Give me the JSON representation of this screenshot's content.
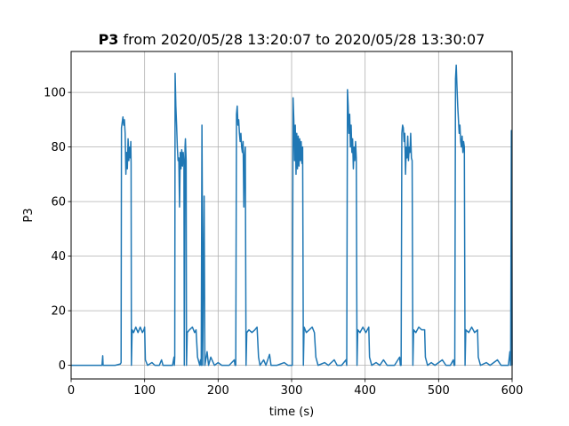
{
  "chart_data": {
    "type": "line",
    "title": {
      "bold": "P3",
      "rest": " from 2020/05/28 13:20:07 to 2020/05/28 13:30:07"
    },
    "xlabel": "time (s)",
    "ylabel": "P3",
    "xlim": [
      0,
      600
    ],
    "ylim": [
      -5,
      115
    ],
    "xticks": [
      0,
      100,
      200,
      300,
      400,
      500,
      600
    ],
    "yticks": [
      0,
      20,
      40,
      60,
      80,
      100
    ],
    "grid": true,
    "series": [
      {
        "color": "#1f77b4",
        "points": [
          [
            0,
            0
          ],
          [
            42,
            0
          ],
          [
            43,
            3.5
          ],
          [
            43.5,
            0
          ],
          [
            60,
            0
          ],
          [
            67,
            0.5
          ],
          [
            68,
            1
          ],
          [
            68.5,
            87
          ],
          [
            69.5,
            89
          ],
          [
            70.5,
            91
          ],
          [
            71.5,
            88
          ],
          [
            72.5,
            90
          ],
          [
            73.5,
            85
          ],
          [
            74.5,
            70
          ],
          [
            75.5,
            78
          ],
          [
            76.5,
            72
          ],
          [
            77.5,
            83
          ],
          [
            78.5,
            75
          ],
          [
            79.5,
            80
          ],
          [
            80.5,
            76
          ],
          [
            81.2,
            82
          ],
          [
            81.6,
            74
          ],
          [
            82,
            0
          ],
          [
            83,
            13
          ],
          [
            85,
            12
          ],
          [
            88,
            14
          ],
          [
            91,
            12
          ],
          [
            94,
            14
          ],
          [
            97,
            12
          ],
          [
            99,
            13
          ],
          [
            100,
            14
          ],
          [
            101,
            2
          ],
          [
            104,
            0
          ],
          [
            110,
            1
          ],
          [
            114,
            0
          ],
          [
            120,
            0
          ],
          [
            123,
            2
          ],
          [
            125,
            0
          ],
          [
            138,
            0
          ],
          [
            140,
            3
          ],
          [
            140.5,
            0
          ],
          [
            141,
            3
          ],
          [
            141.5,
            107
          ],
          [
            142.5,
            95
          ],
          [
            143.5,
            88
          ],
          [
            144.5,
            80
          ],
          [
            145.5,
            75
          ],
          [
            146.5,
            76
          ],
          [
            147.5,
            58
          ],
          [
            148.5,
            78
          ],
          [
            149.5,
            72
          ],
          [
            150.5,
            79
          ],
          [
            151.5,
            73
          ],
          [
            152.5,
            78
          ],
          [
            153.5,
            74
          ],
          [
            154,
            0
          ],
          [
            155,
            80
          ],
          [
            155.5,
            83
          ],
          [
            156.5,
            75
          ],
          [
            157,
            0
          ],
          [
            158,
            12
          ],
          [
            161,
            13
          ],
          [
            165,
            14
          ],
          [
            168,
            12
          ],
          [
            170,
            13
          ],
          [
            172,
            3
          ],
          [
            175,
            0
          ],
          [
            176,
            2
          ],
          [
            177,
            0
          ],
          [
            178,
            88
          ],
          [
            178.5,
            62
          ],
          [
            179,
            0
          ],
          [
            181,
            62
          ],
          [
            182,
            0
          ],
          [
            185,
            5
          ],
          [
            187,
            0
          ],
          [
            190,
            3
          ],
          [
            195,
            0
          ],
          [
            200,
            1
          ],
          [
            205,
            0
          ],
          [
            215,
            0
          ],
          [
            222,
            2
          ],
          [
            223,
            0
          ],
          [
            224,
            0
          ],
          [
            225,
            92
          ],
          [
            226,
            95
          ],
          [
            227,
            88
          ],
          [
            228,
            90
          ],
          [
            229,
            85
          ],
          [
            230,
            82
          ],
          [
            231,
            85
          ],
          [
            232,
            80
          ],
          [
            233,
            78
          ],
          [
            234,
            82
          ],
          [
            235,
            58
          ],
          [
            236,
            77
          ],
          [
            237,
            80
          ],
          [
            238,
            0
          ],
          [
            239,
            12
          ],
          [
            242,
            13
          ],
          [
            246,
            12
          ],
          [
            250,
            13
          ],
          [
            253,
            14
          ],
          [
            255,
            3
          ],
          [
            257,
            0
          ],
          [
            262,
            2
          ],
          [
            265,
            0
          ],
          [
            270,
            4
          ],
          [
            272,
            0
          ],
          [
            280,
            0
          ],
          [
            290,
            1
          ],
          [
            295,
            0
          ],
          [
            300,
            0
          ],
          [
            301,
            0
          ],
          [
            302,
            98
          ],
          [
            303,
            90
          ],
          [
            304,
            75
          ],
          [
            305,
            88
          ],
          [
            306,
            70
          ],
          [
            307,
            85
          ],
          [
            308,
            72
          ],
          [
            309,
            84
          ],
          [
            310,
            73
          ],
          [
            311,
            83
          ],
          [
            312,
            75
          ],
          [
            313,
            82
          ],
          [
            314,
            74
          ],
          [
            315,
            80
          ],
          [
            316,
            0
          ],
          [
            317,
            14
          ],
          [
            320,
            12
          ],
          [
            324,
            13
          ],
          [
            328,
            14
          ],
          [
            331,
            12
          ],
          [
            333,
            3
          ],
          [
            336,
            0
          ],
          [
            345,
            1
          ],
          [
            350,
            0
          ],
          [
            358,
            2
          ],
          [
            362,
            0
          ],
          [
            368,
            0
          ],
          [
            374,
            2
          ],
          [
            375,
            0
          ],
          [
            376,
            101
          ],
          [
            377,
            95
          ],
          [
            378,
            85
          ],
          [
            379,
            92
          ],
          [
            380,
            80
          ],
          [
            381,
            88
          ],
          [
            382,
            78
          ],
          [
            383,
            83
          ],
          [
            384,
            72
          ],
          [
            385,
            80
          ],
          [
            386,
            75
          ],
          [
            387,
            82
          ],
          [
            388,
            76
          ],
          [
            389,
            0
          ],
          [
            390,
            13
          ],
          [
            393,
            12
          ],
          [
            397,
            14
          ],
          [
            401,
            12
          ],
          [
            405,
            14
          ],
          [
            406,
            3
          ],
          [
            409,
            0
          ],
          [
            415,
            1
          ],
          [
            420,
            0
          ],
          [
            425,
            2
          ],
          [
            430,
            0
          ],
          [
            440,
            0
          ],
          [
            447,
            3
          ],
          [
            448,
            0
          ],
          [
            449,
            0
          ],
          [
            450,
            85
          ],
          [
            451,
            88
          ],
          [
            452,
            87
          ],
          [
            453,
            82
          ],
          [
            454,
            85
          ],
          [
            455,
            70
          ],
          [
            456,
            80
          ],
          [
            457,
            76
          ],
          [
            458,
            84
          ],
          [
            459,
            75
          ],
          [
            460,
            80
          ],
          [
            461,
            78
          ],
          [
            462,
            85
          ],
          [
            463,
            76
          ],
          [
            464,
            75
          ],
          [
            465,
            0
          ],
          [
            466,
            13
          ],
          [
            469,
            12
          ],
          [
            473,
            14
          ],
          [
            477,
            13
          ],
          [
            481,
            13
          ],
          [
            482,
            3
          ],
          [
            485,
            0
          ],
          [
            490,
            1
          ],
          [
            495,
            0
          ],
          [
            505,
            2
          ],
          [
            510,
            0
          ],
          [
            516,
            0
          ],
          [
            520,
            2
          ],
          [
            521,
            0
          ],
          [
            522,
            0
          ],
          [
            523,
            105
          ],
          [
            524,
            110
          ],
          [
            525,
            102
          ],
          [
            526,
            95
          ],
          [
            527,
            90
          ],
          [
            528,
            85
          ],
          [
            529,
            88
          ],
          [
            530,
            82
          ],
          [
            531,
            80
          ],
          [
            532,
            84
          ],
          [
            533,
            78
          ],
          [
            534,
            82
          ],
          [
            535,
            80
          ],
          [
            536,
            0
          ],
          [
            537,
            13
          ],
          [
            541,
            12
          ],
          [
            545,
            14
          ],
          [
            549,
            12
          ],
          [
            553,
            13
          ],
          [
            554,
            3
          ],
          [
            557,
            0
          ],
          [
            565,
            1
          ],
          [
            570,
            0
          ],
          [
            580,
            2
          ],
          [
            585,
            0
          ],
          [
            595,
            0
          ],
          [
            597,
            5
          ],
          [
            598,
            0
          ],
          [
            599,
            86
          ],
          [
            599.5,
            80
          ],
          [
            600,
            0
          ]
        ]
      }
    ]
  }
}
